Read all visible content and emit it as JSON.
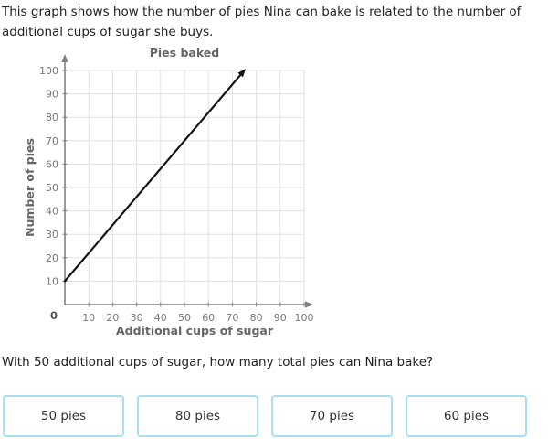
{
  "intro": {
    "text": "This graph shows how the number of pies Nina can bake is related to the number of additional cups of sugar she buys."
  },
  "chart_data": {
    "type": "line",
    "title": "Pies baked",
    "xlabel": "Additional cups of sugar",
    "ylabel": "Number of pies",
    "xlim": [
      0,
      100
    ],
    "ylim": [
      0,
      100
    ],
    "xticks": [
      10,
      20,
      30,
      40,
      50,
      60,
      70,
      80,
      90,
      100
    ],
    "yticks": [
      10,
      20,
      30,
      40,
      50,
      60,
      70,
      80,
      90,
      100
    ],
    "origin_label": "0",
    "grid": true,
    "series": [
      {
        "name": "Pies baked",
        "points": [
          [
            0,
            10
          ],
          [
            25,
            40
          ],
          [
            50,
            70
          ],
          [
            75,
            100
          ]
        ],
        "slope": 1.2,
        "intercept": 10,
        "arrow_at_end": true
      }
    ],
    "colors": {
      "line": "#141414",
      "grid": "#e1e1e1",
      "axis": "#808080",
      "tick_label": "#777777",
      "origin_label": "#555555",
      "axis_label": "#666666",
      "title": "#666666"
    }
  },
  "question": {
    "text": "With 50 additional cups of sugar, how many total pies can Nina bake?"
  },
  "answers": {
    "accent_border": "#a9def2",
    "options": [
      "50 pies",
      "80 pies",
      "70 pies",
      "60 pies"
    ]
  }
}
